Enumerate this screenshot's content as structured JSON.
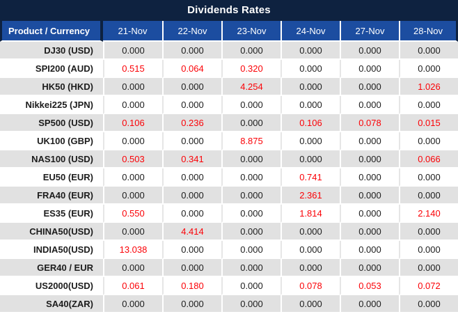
{
  "title": "Dividends Rates",
  "colors": {
    "title_bg": "#0e2240",
    "header_bg": "#1c4da0",
    "row_alt_bg": "#e1e1e1",
    "value_dark": "#1c1c1c",
    "value_red": "#fb0207"
  },
  "table": {
    "product_header": "Product / Currency",
    "date_headers": [
      "21-Nov",
      "22-Nov",
      "23-Nov",
      "24-Nov",
      "27-Nov",
      "28-Nov"
    ],
    "rows": [
      {
        "product": "DJ30 (USD)",
        "values": [
          "0.000",
          "0.000",
          "0.000",
          "0.000",
          "0.000",
          "0.000"
        ],
        "red": [
          false,
          false,
          false,
          false,
          false,
          false
        ]
      },
      {
        "product": "SPI200 (AUD)",
        "values": [
          "0.515",
          "0.064",
          "0.320",
          "0.000",
          "0.000",
          "0.000"
        ],
        "red": [
          true,
          true,
          true,
          false,
          false,
          false
        ]
      },
      {
        "product": "HK50 (HKD)",
        "values": [
          "0.000",
          "0.000",
          "4.254",
          "0.000",
          "0.000",
          "1.026"
        ],
        "red": [
          false,
          false,
          true,
          false,
          false,
          true
        ]
      },
      {
        "product": "Nikkei225 (JPN)",
        "values": [
          "0.000",
          "0.000",
          "0.000",
          "0.000",
          "0.000",
          "0.000"
        ],
        "red": [
          false,
          false,
          false,
          false,
          false,
          false
        ]
      },
      {
        "product": "SP500 (USD)",
        "values": [
          "0.106",
          "0.236",
          "0.000",
          "0.106",
          "0.078",
          "0.015"
        ],
        "red": [
          true,
          true,
          false,
          true,
          true,
          true
        ]
      },
      {
        "product": "UK100 (GBP)",
        "values": [
          "0.000",
          "0.000",
          "8.875",
          "0.000",
          "0.000",
          "0.000"
        ],
        "red": [
          false,
          false,
          true,
          false,
          false,
          false
        ]
      },
      {
        "product": "NAS100 (USD)",
        "values": [
          "0.503",
          "0.341",
          "0.000",
          "0.000",
          "0.000",
          "0.066"
        ],
        "red": [
          true,
          true,
          false,
          false,
          false,
          true
        ]
      },
      {
        "product": "EU50 (EUR)",
        "values": [
          "0.000",
          "0.000",
          "0.000",
          "0.741",
          "0.000",
          "0.000"
        ],
        "red": [
          false,
          false,
          false,
          true,
          false,
          false
        ]
      },
      {
        "product": "FRA40 (EUR)",
        "values": [
          "0.000",
          "0.000",
          "0.000",
          "2.361",
          "0.000",
          "0.000"
        ],
        "red": [
          false,
          false,
          false,
          true,
          false,
          false
        ]
      },
      {
        "product": "ES35 (EUR)",
        "values": [
          "0.550",
          "0.000",
          "0.000",
          "1.814",
          "0.000",
          "2.140"
        ],
        "red": [
          true,
          false,
          false,
          true,
          false,
          true
        ]
      },
      {
        "product": "CHINA50(USD)",
        "values": [
          "0.000",
          "4.414",
          "0.000",
          "0.000",
          "0.000",
          "0.000"
        ],
        "red": [
          false,
          true,
          false,
          false,
          false,
          false
        ]
      },
      {
        "product": "INDIA50(USD)",
        "values": [
          "13.038",
          "0.000",
          "0.000",
          "0.000",
          "0.000",
          "0.000"
        ],
        "red": [
          true,
          false,
          false,
          false,
          false,
          false
        ]
      },
      {
        "product": "GER40 / EUR",
        "values": [
          "0.000",
          "0.000",
          "0.000",
          "0.000",
          "0.000",
          "0.000"
        ],
        "red": [
          false,
          false,
          false,
          false,
          false,
          false
        ]
      },
      {
        "product": "US2000(USD)",
        "values": [
          "0.061",
          "0.180",
          "0.000",
          "0.078",
          "0.053",
          "0.072"
        ],
        "red": [
          true,
          true,
          false,
          true,
          true,
          true
        ]
      },
      {
        "product": "SA40(ZAR)",
        "values": [
          "0.000",
          "0.000",
          "0.000",
          "0.000",
          "0.000",
          "0.000"
        ],
        "red": [
          false,
          false,
          false,
          false,
          false,
          false
        ]
      }
    ]
  }
}
